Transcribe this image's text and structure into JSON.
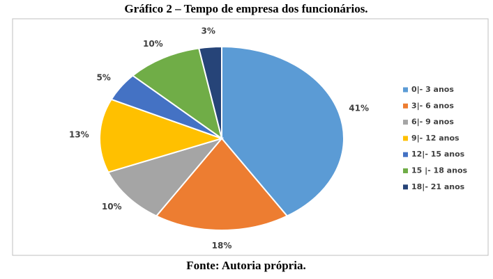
{
  "chart_data": {
    "type": "pie",
    "title": "Gráfico 2 – Tempo de empresa dos funcionários.",
    "caption": "Fonte: Autoria própria.",
    "categories": [
      "0|- 3 anos",
      "3|- 6 anos",
      "6|- 9 anos",
      "9|- 12 anos",
      "12|- 15 anos",
      "15 |- 18 anos",
      "18|- 21 anos"
    ],
    "values": [
      41,
      18,
      10,
      13,
      5,
      10,
      3
    ],
    "value_labels": [
      "41%",
      "18%",
      "10%",
      "13%",
      "5%",
      "10%",
      "3%"
    ],
    "colors": [
      "#5b9bd5",
      "#ed7d31",
      "#a5a5a5",
      "#ffc000",
      "#4472c4",
      "#70ad47",
      "#264478"
    ],
    "legend": "right"
  }
}
